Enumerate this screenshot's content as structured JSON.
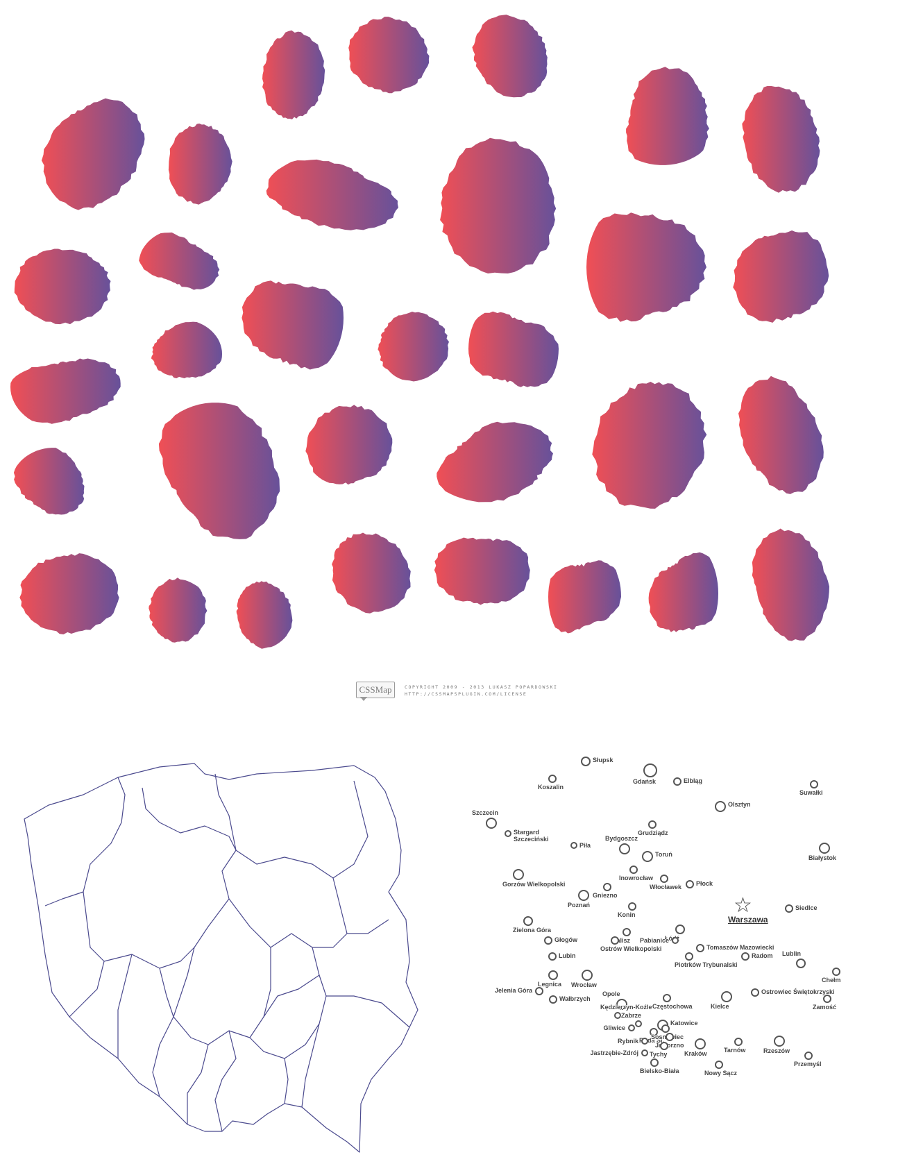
{
  "colors": {
    "gradient_start": "#f04f55",
    "gradient_end": "#67519a",
    "outline_stroke": "#4b4a8e",
    "city_marker": "#555555"
  },
  "credit": {
    "logo_text": "CSSMap",
    "copyright": "COPYRIGHT 2009 - 2013 LUKASZ POPARDOWSKI",
    "license_url": "HTTP://CSSMAPSPLUGIN.COM/LICENSE"
  },
  "cities": [
    {
      "name": "Słupsk"
    },
    {
      "name": "Gdańsk"
    },
    {
      "name": "Koszalin"
    },
    {
      "name": "Elbląg"
    },
    {
      "name": "Suwałki"
    },
    {
      "name": "Olsztyn"
    },
    {
      "name": "Szczecin"
    },
    {
      "name": "Grudziądz"
    },
    {
      "name": "Stargard Szczeciński"
    },
    {
      "name": "Piła"
    },
    {
      "name": "Bydgoszcz"
    },
    {
      "name": "Toruń"
    },
    {
      "name": "Białystok"
    },
    {
      "name": "Inowrocław"
    },
    {
      "name": "Gorzów Wielkopolski"
    },
    {
      "name": "Włocławek"
    },
    {
      "name": "Płock"
    },
    {
      "name": "Gniezno"
    },
    {
      "name": "Poznań"
    },
    {
      "name": "Warszawa",
      "capital": true
    },
    {
      "name": "Konin"
    },
    {
      "name": "Siedlce"
    },
    {
      "name": "Łódź"
    },
    {
      "name": "Zielona Góra"
    },
    {
      "name": "Kalisz"
    },
    {
      "name": "Pabianice"
    },
    {
      "name": "Głogów"
    },
    {
      "name": "Ostrów Wielkopolski"
    },
    {
      "name": "Tomaszów Mazowiecki"
    },
    {
      "name": "Lubin"
    },
    {
      "name": "Piotrków Trybunalski"
    },
    {
      "name": "Radom"
    },
    {
      "name": "Lublin"
    },
    {
      "name": "Legnica"
    },
    {
      "name": "Chełm"
    },
    {
      "name": "Wrocław"
    },
    {
      "name": "Jelenia Góra"
    },
    {
      "name": "Ostrowiec Świętokrzyski"
    },
    {
      "name": "Opole"
    },
    {
      "name": "Częstochowa"
    },
    {
      "name": "Kielce"
    },
    {
      "name": "Wałbrzych"
    },
    {
      "name": "Zamość"
    },
    {
      "name": "Kędzierzyn-Koźle"
    },
    {
      "name": "Zabrze"
    },
    {
      "name": "Katowice"
    },
    {
      "name": "Gliwice"
    },
    {
      "name": "Ruda Śl."
    },
    {
      "name": "Sosnowiec"
    },
    {
      "name": "Jaworzno"
    },
    {
      "name": "Rybnik"
    },
    {
      "name": "Tychy"
    },
    {
      "name": "Kraków"
    },
    {
      "name": "Tarnów"
    },
    {
      "name": "Rzeszów"
    },
    {
      "name": "Jastrzębie-Zdrój"
    },
    {
      "name": "Bielsko-Biała"
    },
    {
      "name": "Przemyśl"
    },
    {
      "name": "Nowy Sącz"
    }
  ]
}
